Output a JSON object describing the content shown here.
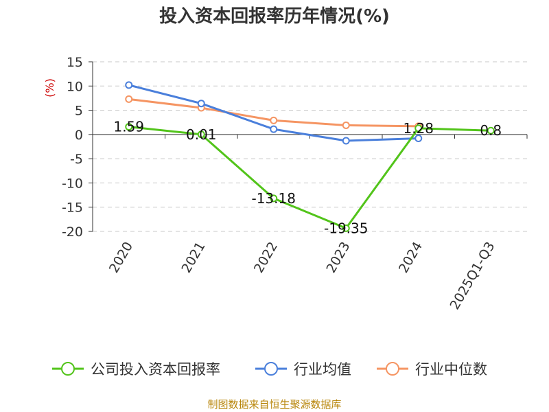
{
  "chart_data": {
    "type": "line",
    "title": "投入资本回报率历年情况(%)",
    "ylabel": "(%)",
    "categories": [
      "2020",
      "2021",
      "2022",
      "2023",
      "2024",
      "2025Q1-Q3"
    ],
    "ylim": [
      -20,
      15
    ],
    "yticks": [
      15,
      10,
      5,
      0,
      -5,
      -10,
      -15,
      -20
    ],
    "grid": true,
    "legend_position": "bottom",
    "series": [
      {
        "name": "公司投入资本回报率",
        "color": "#52c41a",
        "values": [
          1.59,
          0.01,
          -13.18,
          -19.35,
          1.28,
          0.8
        ],
        "labels": [
          "1.59",
          "0.01",
          "-13.18",
          "-19.35",
          "1.28",
          "0.8"
        ]
      },
      {
        "name": "行业均值",
        "color": "#4a7fdb",
        "values": [
          10.2,
          6.4,
          1.1,
          -1.3,
          -0.8,
          null
        ]
      },
      {
        "name": "行业中位数",
        "color": "#f59563",
        "values": [
          7.3,
          5.5,
          2.9,
          1.9,
          1.7,
          null
        ]
      }
    ]
  },
  "source": "制图数据来自恒生聚源数据库"
}
